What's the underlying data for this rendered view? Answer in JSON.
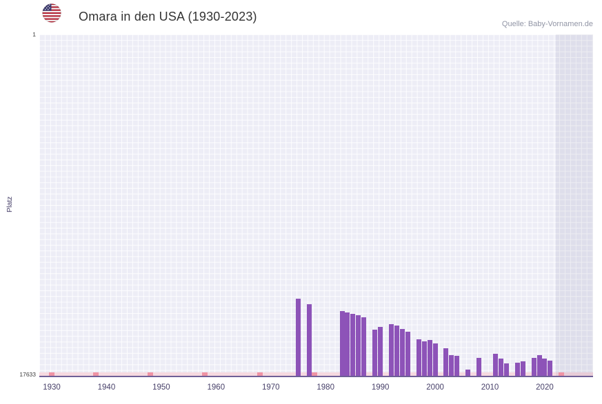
{
  "header": {
    "title": "Omara in den USA (1930-2023)",
    "source": "Quelle: Baby-Vornamen.de",
    "flag_icon": "us-flag"
  },
  "axes": {
    "y_label": "Platz",
    "y_top_tick": "1",
    "y_bottom_tick": "17633"
  },
  "chart_data": {
    "type": "bar",
    "title": "Omara in den USA (1930-2023)",
    "xlabel": "",
    "ylabel": "Platz",
    "y_axis_inverted": true,
    "ylim": [
      1,
      17633
    ],
    "x_ticks": [
      1930,
      1940,
      1950,
      1960,
      1970,
      1980,
      1990,
      2000,
      2010,
      2020
    ],
    "grid": true,
    "bar_color": "#8d53b8",
    "unranked_color": "#ef93a4",
    "unranked_strip_color": "#f6d9e0",
    "plot_background": "#ededf6",
    "series": [
      {
        "name": "Platz",
        "points": [
          [
            1975,
            13650
          ],
          [
            1977,
            13950
          ],
          [
            1983,
            14300
          ],
          [
            1984,
            14350
          ],
          [
            1985,
            14450
          ],
          [
            1986,
            14500
          ],
          [
            1987,
            14600
          ],
          [
            1989,
            15250
          ],
          [
            1990,
            15100
          ],
          [
            1992,
            14950
          ],
          [
            1993,
            15050
          ],
          [
            1994,
            15200
          ],
          [
            1995,
            15350
          ],
          [
            1997,
            15750
          ],
          [
            1998,
            15850
          ],
          [
            1999,
            15800
          ],
          [
            2000,
            15950
          ],
          [
            2002,
            16200
          ],
          [
            2003,
            16550
          ],
          [
            2004,
            16600
          ],
          [
            2006,
            17300
          ],
          [
            2008,
            16700
          ],
          [
            2011,
            16500
          ],
          [
            2012,
            16750
          ],
          [
            2013,
            17000
          ],
          [
            2015,
            16950
          ],
          [
            2016,
            16900
          ],
          [
            2018,
            16700
          ],
          [
            2019,
            16550
          ],
          [
            2020,
            16750
          ],
          [
            2021,
            16850
          ]
        ]
      }
    ],
    "unranked_years": [
      1930,
      1938,
      1948,
      1958,
      1968,
      1978,
      2023
    ],
    "shaded_from_year": 2022
  }
}
